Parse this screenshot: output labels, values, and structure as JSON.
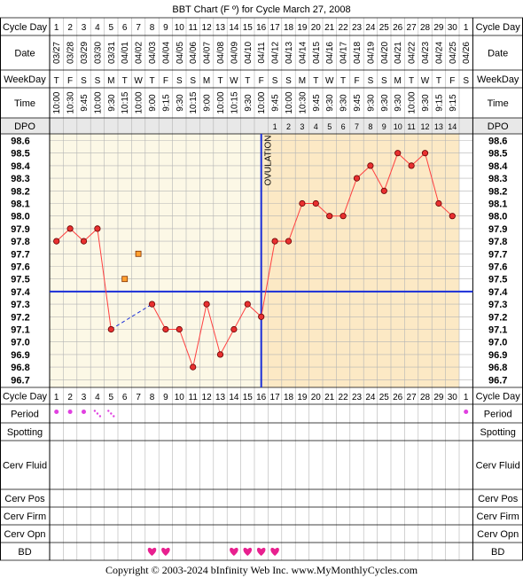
{
  "title": "BBT Chart (F º) for Cycle March 27, 2008",
  "copyright": "Copyright © 2003-2024 bInfinity Web Inc.    www.MyMonthlyCycles.com",
  "row_labels": {
    "cycle_day": "Cycle Day",
    "date": "Date",
    "weekday": "WeekDay",
    "time": "Time",
    "dpo": "DPO",
    "period": "Period",
    "spotting": "Spotting",
    "cerv_fluid": "Cerv Fluid",
    "cerv_pos": "Cerv Pos",
    "cerv_firm": "Cerv Firm",
    "cerv_opn": "Cerv Opn",
    "bd": "BD"
  },
  "ovulation_label": "OVULATION",
  "colors": {
    "pre_ovulation_bg": "#fcf8e6",
    "post_ovulation_bg": "#fce9c5",
    "grid": "#b4b4b4",
    "line": "#ff4040",
    "point_fill": "#e83030",
    "unused_point_fill": "#ffa030",
    "coverline": "#1a2ed8",
    "ovulation_line": "#1a2ed8",
    "period_dot": "#e040e0",
    "heart": "#e8208f",
    "header_bg": "#efefef",
    "dpo_bg": "#e8e8e8"
  },
  "chart_data": {
    "type": "line",
    "title": "BBT Chart (F º) for Cycle March 27, 2008",
    "cycle_days": [
      "1",
      "2",
      "3",
      "4",
      "5",
      "6",
      "7",
      "8",
      "9",
      "10",
      "11",
      "12",
      "13",
      "14",
      "15",
      "16",
      "17",
      "18",
      "19",
      "20",
      "21",
      "22",
      "23",
      "24",
      "25",
      "26",
      "27",
      "28",
      "29",
      "30",
      "1"
    ],
    "dates": [
      "03/27",
      "03/28",
      "03/29",
      "03/30",
      "03/31",
      "04/01",
      "04/02",
      "04/03",
      "04/04",
      "04/05",
      "04/06",
      "04/07",
      "04/08",
      "04/09",
      "04/10",
      "04/11",
      "04/12",
      "04/13",
      "04/14",
      "04/15",
      "04/16",
      "04/17",
      "04/18",
      "04/19",
      "04/20",
      "04/21",
      "04/22",
      "04/23",
      "04/24",
      "04/25",
      "04/26"
    ],
    "weekdays": [
      "T",
      "F",
      "S",
      "S",
      "M",
      "T",
      "W",
      "T",
      "F",
      "S",
      "S",
      "M",
      "T",
      "W",
      "T",
      "F",
      "S",
      "S",
      "M",
      "T",
      "W",
      "T",
      "F",
      "S",
      "S",
      "M",
      "T",
      "W",
      "T",
      "F",
      "S"
    ],
    "times": [
      "10:00",
      "10:30",
      "9:45",
      "10:00",
      "9:30",
      "10:15",
      "10:00",
      "9:00",
      "9:15",
      "9:30",
      "10:15",
      "9:00",
      "10:00",
      "10:15",
      "9:30",
      "10:00",
      "9:45",
      "10:00",
      "10:30",
      "9:45",
      "9:30",
      "9:30",
      "9:45",
      "9:30",
      "9:30",
      "9:30",
      "10:00",
      "9:30",
      "9:15",
      "9:15",
      ""
    ],
    "dpo": [
      "",
      "",
      "",
      "",
      "",
      "",
      "",
      "",
      "",
      "",
      "",
      "",
      "",
      "",
      "",
      "",
      "1",
      "2",
      "3",
      "4",
      "5",
      "6",
      "7",
      "8",
      "9",
      "10",
      "11",
      "12",
      "13",
      "14",
      ""
    ],
    "y_ticks": [
      "98.6",
      "98.5",
      "98.4",
      "98.3",
      "98.2",
      "98.1",
      "98.0",
      "97.9",
      "97.8",
      "97.7",
      "97.6",
      "97.5",
      "97.4",
      "97.3",
      "97.2",
      "97.1",
      "97.0",
      "96.9",
      "96.8",
      "96.7"
    ],
    "ylim": [
      96.7,
      98.6
    ],
    "temperatures": [
      97.8,
      97.9,
      97.8,
      97.9,
      97.1,
      null,
      null,
      97.3,
      97.1,
      97.1,
      96.8,
      97.3,
      96.9,
      97.1,
      97.3,
      97.2,
      97.8,
      97.8,
      98.1,
      98.1,
      98.0,
      98.0,
      98.3,
      98.4,
      98.2,
      98.5,
      98.4,
      98.5,
      98.1,
      98.0,
      null
    ],
    "unused_temperatures": [
      null,
      null,
      null,
      null,
      null,
      97.5,
      97.7,
      null,
      null,
      null,
      null,
      null,
      null,
      null,
      null,
      null,
      null,
      null,
      null,
      null,
      null,
      null,
      null,
      null,
      null,
      null,
      null,
      null,
      null,
      null,
      null
    ],
    "coverline": 97.4,
    "ovulation_day_index": 15,
    "period": [
      "heavy",
      "heavy",
      "heavy",
      "light",
      "light",
      "",
      "",
      "",
      "",
      "",
      "",
      "",
      "",
      "",
      "",
      "",
      "",
      "",
      "",
      "",
      "",
      "",
      "",
      "",
      "",
      "",
      "",
      "",
      "",
      "",
      "heavy"
    ],
    "bd": [
      "",
      "",
      "",
      "",
      "",
      "",
      "",
      "1",
      "1",
      "",
      "",
      "",
      "",
      "1",
      "1",
      "1",
      "1",
      "",
      "",
      "",
      "",
      "",
      "",
      "",
      "",
      "",
      "",
      "",
      "",
      "",
      ""
    ]
  }
}
